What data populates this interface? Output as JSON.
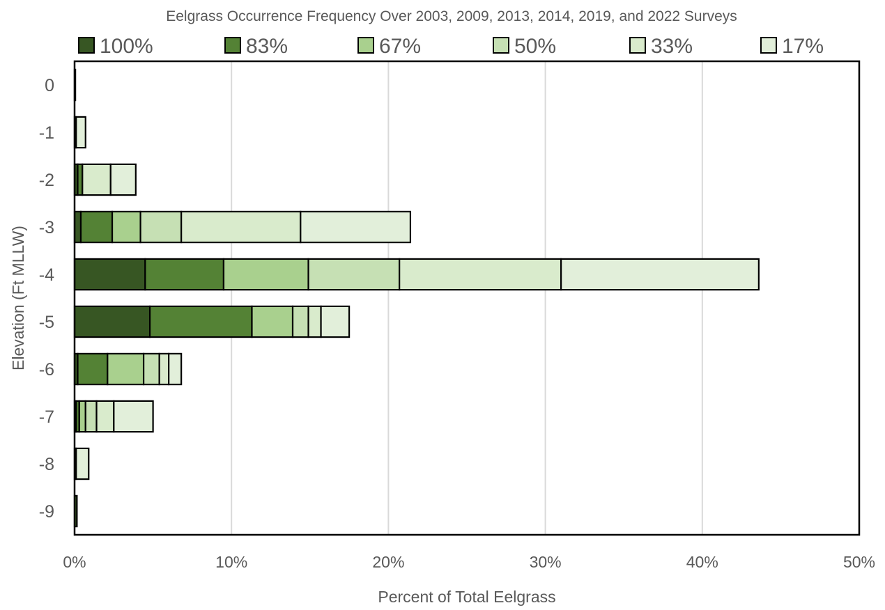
{
  "chart_data": {
    "type": "bar",
    "orientation": "horizontal",
    "stacked": true,
    "title": "Eelgrass Occurrence Frequency Over 2003, 2009, 2013, 2014, 2019, and 2022 Surveys",
    "xlabel": "Percent of Total Eelgrass",
    "ylabel": "Elevation (Ft MLLW)",
    "xlim": [
      0,
      50
    ],
    "xticks": [
      "0%",
      "10%",
      "20%",
      "30%",
      "40%",
      "50%"
    ],
    "grid": "vertical",
    "legend_position": "top",
    "categories": [
      "0",
      "-1",
      "-2",
      "-3",
      "-4",
      "-5",
      "-6",
      "-7",
      "-8",
      "-9"
    ],
    "series": [
      {
        "name": "100%",
        "color": "#375623",
        "values": [
          0.05,
          0.0,
          0.2,
          0.4,
          4.5,
          4.8,
          0.2,
          0.1,
          0.0,
          0.15
        ]
      },
      {
        "name": "83%",
        "color": "#548235",
        "values": [
          0.0,
          0.1,
          0.3,
          2.0,
          5.0,
          6.5,
          1.9,
          0.2,
          0.1,
          0.0
        ]
      },
      {
        "name": "67%",
        "color": "#a9d08e",
        "values": [
          0.0,
          0.0,
          0.0,
          1.8,
          5.4,
          2.6,
          2.3,
          0.4,
          0.0,
          0.0
        ]
      },
      {
        "name": "50%",
        "color": "#c6e0b4",
        "values": [
          0.0,
          0.0,
          0.0,
          2.6,
          5.8,
          1.0,
          1.0,
          0.7,
          0.0,
          0.0
        ]
      },
      {
        "name": "33%",
        "color": "#d9ebcc",
        "values": [
          0.0,
          0.0,
          1.8,
          7.6,
          10.3,
          0.8,
          0.6,
          1.1,
          0.0,
          0.0
        ]
      },
      {
        "name": "17%",
        "color": "#e2efda",
        "values": [
          0.0,
          0.6,
          1.6,
          7.0,
          12.6,
          1.8,
          0.8,
          2.5,
          0.8,
          0.0
        ]
      }
    ]
  }
}
